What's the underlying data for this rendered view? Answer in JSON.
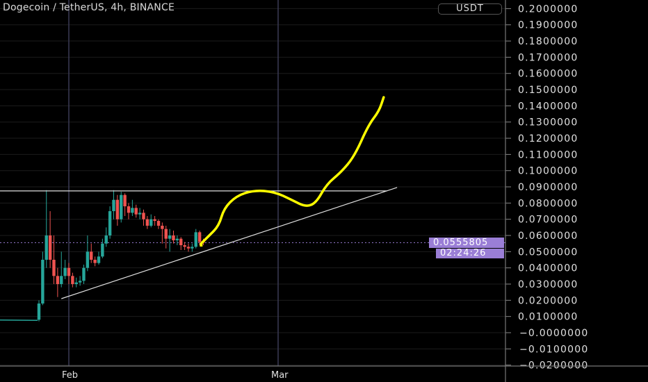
{
  "header": {
    "title": "Dogecoin / TetherUS, 4h, BINANCE",
    "unit_button": "USDT"
  },
  "price_label": {
    "last_price": "0.0555805",
    "countdown": "02:24:26"
  },
  "colors": {
    "up": "#26a69a",
    "down": "#ef5350",
    "drawing": "#ffff00",
    "lines": "#e0e0e0",
    "price_label": "#9a7ed6",
    "grid": "#1c1c1c",
    "vline": "#3a3a55"
  },
  "chart_data": {
    "type": "candlestick",
    "title": "Dogecoin / TetherUS, 4h, BINANCE",
    "ylim": [
      -0.02,
      0.2
    ],
    "y_ticks": [
      "0.2000000",
      "0.1900000",
      "0.1800000",
      "0.1700000",
      "0.1600000",
      "0.1500000",
      "0.1400000",
      "0.1300000",
      "0.1200000",
      "0.1100000",
      "0.1000000",
      "0.0900000",
      "0.0800000",
      "0.0700000",
      "0.0600000",
      "0.0500000",
      "0.0400000",
      "0.0300000",
      "0.0200000",
      "0.0100000",
      "0.0000000",
      "-0.0100000",
      "-0.0200000"
    ],
    "x_ticks": [
      {
        "label": "Feb",
        "t": "Feb 1 00:00"
      },
      {
        "label": "Mar",
        "t": "Mar 1 00:00"
      }
    ],
    "xlim": [
      "Jan 22 19:00",
      "Mar 24 00:00"
    ],
    "grid": true,
    "pre_line": [
      [
        "Jan 22 19:00",
        0.0078
      ],
      [
        "Jan 27 20:00",
        0.0076
      ]
    ],
    "candles": [
      [
        "Jan 28 00:00",
        0.008,
        0.02,
        0.007,
        0.018
      ],
      [
        "Jan 28 12:00",
        0.018,
        0.05,
        0.017,
        0.045
      ],
      [
        "Jan 29 00:00",
        0.045,
        0.088,
        0.04,
        0.06
      ],
      [
        "Jan 29 12:00",
        0.06,
        0.075,
        0.04,
        0.045
      ],
      [
        "Jan 30 00:00",
        0.045,
        0.06,
        0.03,
        0.035
      ],
      [
        "Jan 30 12:00",
        0.035,
        0.04,
        0.022,
        0.03
      ],
      [
        "Jan 31 00:00",
        0.03,
        0.05,
        0.028,
        0.035
      ],
      [
        "Jan 31 12:00",
        0.035,
        0.045,
        0.033,
        0.04
      ],
      [
        "Feb 1 00:00",
        0.04,
        0.043,
        0.03,
        0.035
      ],
      [
        "Feb 1 12:00",
        0.035,
        0.037,
        0.028,
        0.03
      ],
      [
        "Feb 2 00:00",
        0.03,
        0.034,
        0.028,
        0.031
      ],
      [
        "Feb 2 12:00",
        0.031,
        0.035,
        0.029,
        0.032
      ],
      [
        "Feb 3 00:00",
        0.032,
        0.042,
        0.03,
        0.04
      ],
      [
        "Feb 3 12:00",
        0.04,
        0.06,
        0.038,
        0.05
      ],
      [
        "Feb 4 00:00",
        0.05,
        0.055,
        0.043,
        0.045
      ],
      [
        "Feb 4 12:00",
        0.045,
        0.047,
        0.041,
        0.043
      ],
      [
        "Feb 5 00:00",
        0.043,
        0.05,
        0.042,
        0.047
      ],
      [
        "Feb 5 12:00",
        0.047,
        0.058,
        0.046,
        0.055
      ],
      [
        "Feb 6 00:00",
        0.055,
        0.065,
        0.053,
        0.06
      ],
      [
        "Feb 6 12:00",
        0.06,
        0.078,
        0.058,
        0.075
      ],
      [
        "Feb 7 00:00",
        0.075,
        0.088,
        0.07,
        0.082
      ],
      [
        "Feb 7 12:00",
        0.082,
        0.085,
        0.066,
        0.07
      ],
      [
        "Feb 8 00:00",
        0.07,
        0.087,
        0.068,
        0.085
      ],
      [
        "Feb 8 12:00",
        0.085,
        0.086,
        0.072,
        0.078
      ],
      [
        "Feb 9 00:00",
        0.078,
        0.08,
        0.07,
        0.074
      ],
      [
        "Feb 9 12:00",
        0.074,
        0.082,
        0.072,
        0.077
      ],
      [
        "Feb 10 00:00",
        0.077,
        0.079,
        0.071,
        0.073
      ],
      [
        "Feb 10 12:00",
        0.073,
        0.077,
        0.07,
        0.074
      ],
      [
        "Feb 11 00:00",
        0.074,
        0.076,
        0.066,
        0.07
      ],
      [
        "Feb 11 12:00",
        0.07,
        0.072,
        0.064,
        0.066
      ],
      [
        "Feb 12 00:00",
        0.066,
        0.073,
        0.065,
        0.07
      ],
      [
        "Feb 12 12:00",
        0.07,
        0.072,
        0.066,
        0.069
      ],
      [
        "Feb 13 00:00",
        0.069,
        0.07,
        0.064,
        0.066
      ],
      [
        "Feb 13 12:00",
        0.066,
        0.068,
        0.055,
        0.064
      ],
      [
        "Feb 14 00:00",
        0.064,
        0.066,
        0.052,
        0.058
      ],
      [
        "Feb 14 12:00",
        0.058,
        0.064,
        0.05,
        0.06
      ],
      [
        "Feb 15 00:00",
        0.06,
        0.063,
        0.055,
        0.057
      ],
      [
        "Feb 15 12:00",
        0.057,
        0.06,
        0.054,
        0.058
      ],
      [
        "Feb 16 00:00",
        0.058,
        0.059,
        0.051,
        0.054
      ],
      [
        "Feb 16 12:00",
        0.054,
        0.056,
        0.051,
        0.053
      ],
      [
        "Feb 17 00:00",
        0.053,
        0.055,
        0.05,
        0.052
      ],
      [
        "Feb 17 12:00",
        0.052,
        0.055,
        0.05,
        0.053
      ],
      [
        "Feb 18 00:00",
        0.053,
        0.064,
        0.052,
        0.062
      ],
      [
        "Feb 18 12:00",
        0.062,
        0.063,
        0.054,
        0.056
      ],
      [
        "Feb 19 00:00",
        0.056,
        0.058,
        0.054,
        0.0556
      ]
    ],
    "last_price": 0.0555805,
    "drawings": {
      "horizontal_line": [
        [
          "Jan 22 19:00",
          0.0875
        ],
        [
          "Mar 15 14:00",
          0.0875
        ]
      ],
      "trend_line": [
        [
          "Jan 31 00:00",
          0.021
        ],
        [
          "Mar 16 22:00",
          0.0896
        ]
      ],
      "freehand": [
        [
          "Feb 18 18:00",
          0.0553
        ],
        [
          "Feb 19 17:00",
          0.0596
        ],
        [
          "Feb 21 02:00",
          0.066
        ],
        [
          "Feb 21 18:00",
          0.0767
        ],
        [
          "Feb 23 10:00",
          0.0844
        ],
        [
          "Feb 25 18:00",
          0.0879
        ],
        [
          "Feb 28 12:00",
          0.087
        ],
        [
          "Mar 2 20:00",
          0.0819
        ],
        [
          "Mar 4 17:00",
          0.0776
        ],
        [
          "Mar 6 02:00",
          0.0801
        ],
        [
          "Mar 7 12:00",
          0.0917
        ],
        [
          "Mar 9 10:00",
          0.099
        ],
        [
          "Mar 11 05:00",
          0.1089
        ],
        [
          "Mar 13 02:00",
          0.1281
        ],
        [
          "Mar 14 12:00",
          0.1367
        ],
        [
          "Mar 15 03:00",
          0.1453
        ]
      ]
    }
  }
}
